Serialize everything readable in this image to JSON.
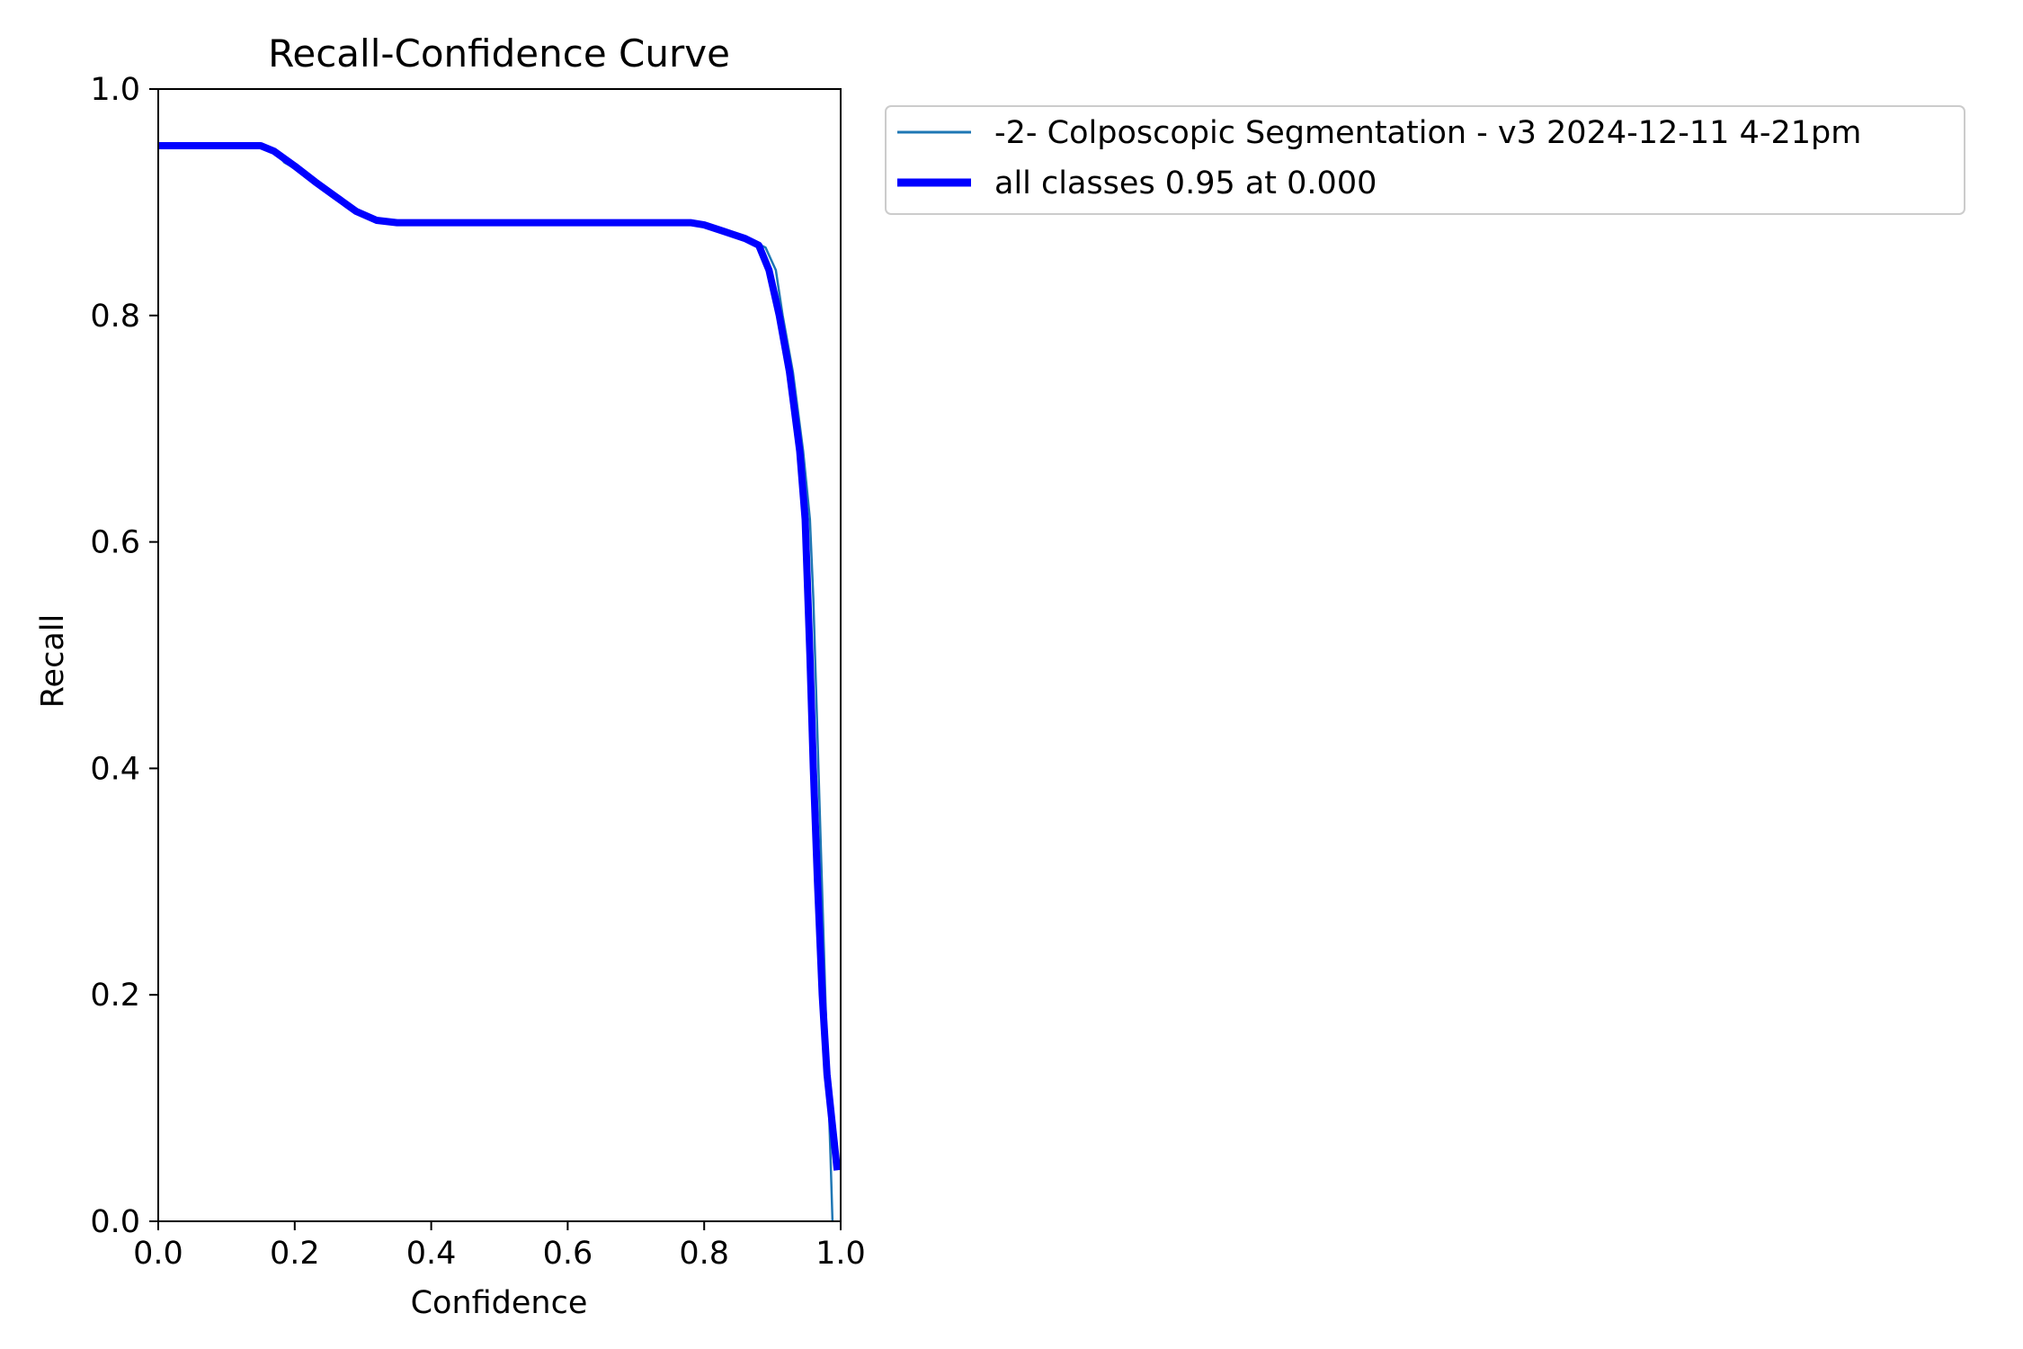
{
  "chart_data": {
    "type": "line",
    "title": "Recall-Confidence Curve",
    "xlabel": "Confidence",
    "ylabel": "Recall",
    "xlim": [
      0.0,
      1.0
    ],
    "ylim": [
      0.0,
      1.0
    ],
    "xticks": [
      "0.0",
      "0.2",
      "0.4",
      "0.6",
      "0.8",
      "1.0"
    ],
    "yticks": [
      "0.0",
      "0.2",
      "0.4",
      "0.6",
      "0.8",
      "1.0"
    ],
    "grid": false,
    "legend_position": "outside-upper-right",
    "series": [
      {
        "name": "-2- Colposcopic Segmentation - v3 2024-12-11 4-21pm",
        "color": "#1f77b4",
        "linewidth": "thin",
        "points": [
          [
            0.0,
            0.95
          ],
          [
            0.15,
            0.95
          ],
          [
            0.165,
            0.945
          ],
          [
            0.175,
            0.942
          ],
          [
            0.185,
            0.935
          ],
          [
            0.2,
            0.93
          ],
          [
            0.21,
            0.928
          ],
          [
            0.22,
            0.925
          ],
          [
            0.23,
            0.918
          ],
          [
            0.25,
            0.91
          ],
          [
            0.27,
            0.902
          ],
          [
            0.3,
            0.89
          ],
          [
            0.33,
            0.883
          ],
          [
            0.36,
            0.882
          ],
          [
            0.5,
            0.882
          ],
          [
            0.78,
            0.882
          ],
          [
            0.81,
            0.878
          ],
          [
            0.84,
            0.872
          ],
          [
            0.87,
            0.866
          ],
          [
            0.89,
            0.86
          ],
          [
            0.905,
            0.84
          ],
          [
            0.915,
            0.8
          ],
          [
            0.93,
            0.75
          ],
          [
            0.945,
            0.68
          ],
          [
            0.955,
            0.62
          ],
          [
            0.96,
            0.55
          ],
          [
            0.965,
            0.45
          ],
          [
            0.97,
            0.35
          ],
          [
            0.975,
            0.25
          ],
          [
            0.98,
            0.15
          ],
          [
            0.985,
            0.06
          ],
          [
            0.988,
            0.0
          ]
        ]
      },
      {
        "name": "all classes 0.95 at 0.000",
        "color": "#0000ff",
        "linewidth": "thick",
        "points": [
          [
            0.0,
            0.95
          ],
          [
            0.15,
            0.95
          ],
          [
            0.17,
            0.945
          ],
          [
            0.2,
            0.932
          ],
          [
            0.23,
            0.918
          ],
          [
            0.26,
            0.905
          ],
          [
            0.29,
            0.892
          ],
          [
            0.32,
            0.884
          ],
          [
            0.35,
            0.882
          ],
          [
            0.5,
            0.882
          ],
          [
            0.78,
            0.882
          ],
          [
            0.8,
            0.88
          ],
          [
            0.83,
            0.874
          ],
          [
            0.86,
            0.868
          ],
          [
            0.88,
            0.862
          ],
          [
            0.895,
            0.84
          ],
          [
            0.91,
            0.8
          ],
          [
            0.925,
            0.75
          ],
          [
            0.94,
            0.68
          ],
          [
            0.948,
            0.62
          ],
          [
            0.955,
            0.5
          ],
          [
            0.96,
            0.4
          ],
          [
            0.966,
            0.3
          ],
          [
            0.973,
            0.2
          ],
          [
            0.98,
            0.13
          ],
          [
            0.987,
            0.09
          ],
          [
            0.995,
            0.045
          ]
        ]
      }
    ]
  }
}
